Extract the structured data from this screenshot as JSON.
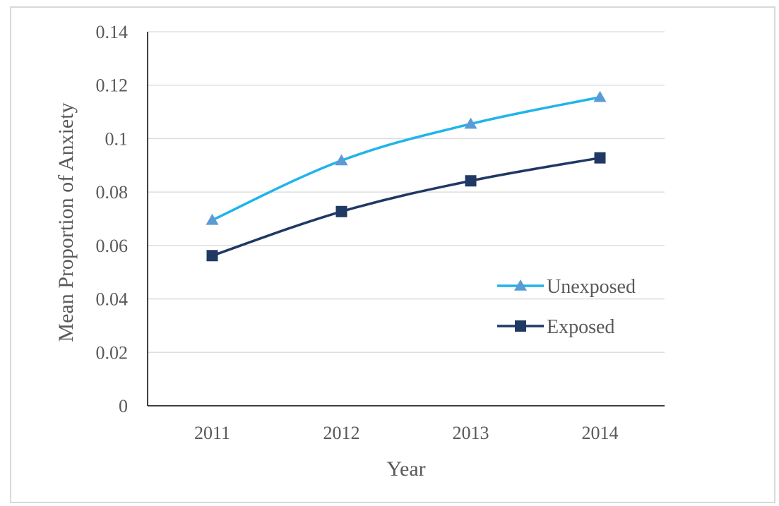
{
  "chart_data": {
    "type": "line",
    "xlabel": "Year",
    "ylabel": "Mean Proportion of Anxiety",
    "categories": [
      "2011",
      "2012",
      "2013",
      "2014"
    ],
    "ylim": [
      0,
      0.14
    ],
    "yticks": [
      0,
      0.02,
      0.04,
      0.06,
      0.08,
      0.1,
      0.12,
      0.14
    ],
    "ytick_labels": [
      "0",
      "0.02",
      "0.04",
      "0.06",
      "0.08",
      "0.1",
      "0.12",
      "0.14"
    ],
    "grid": true,
    "legend_position": "right",
    "series": [
      {
        "name": "Unexposed",
        "values": [
          0.0695,
          0.0918,
          0.1055,
          0.1155
        ],
        "color": "#5b9bd5",
        "line_color": "#1fb4ea",
        "marker": "triangle"
      },
      {
        "name": "Exposed",
        "values": [
          0.0562,
          0.0727,
          0.0842,
          0.0928
        ],
        "color": "#203864",
        "line_color": "#203864",
        "marker": "square"
      }
    ]
  }
}
